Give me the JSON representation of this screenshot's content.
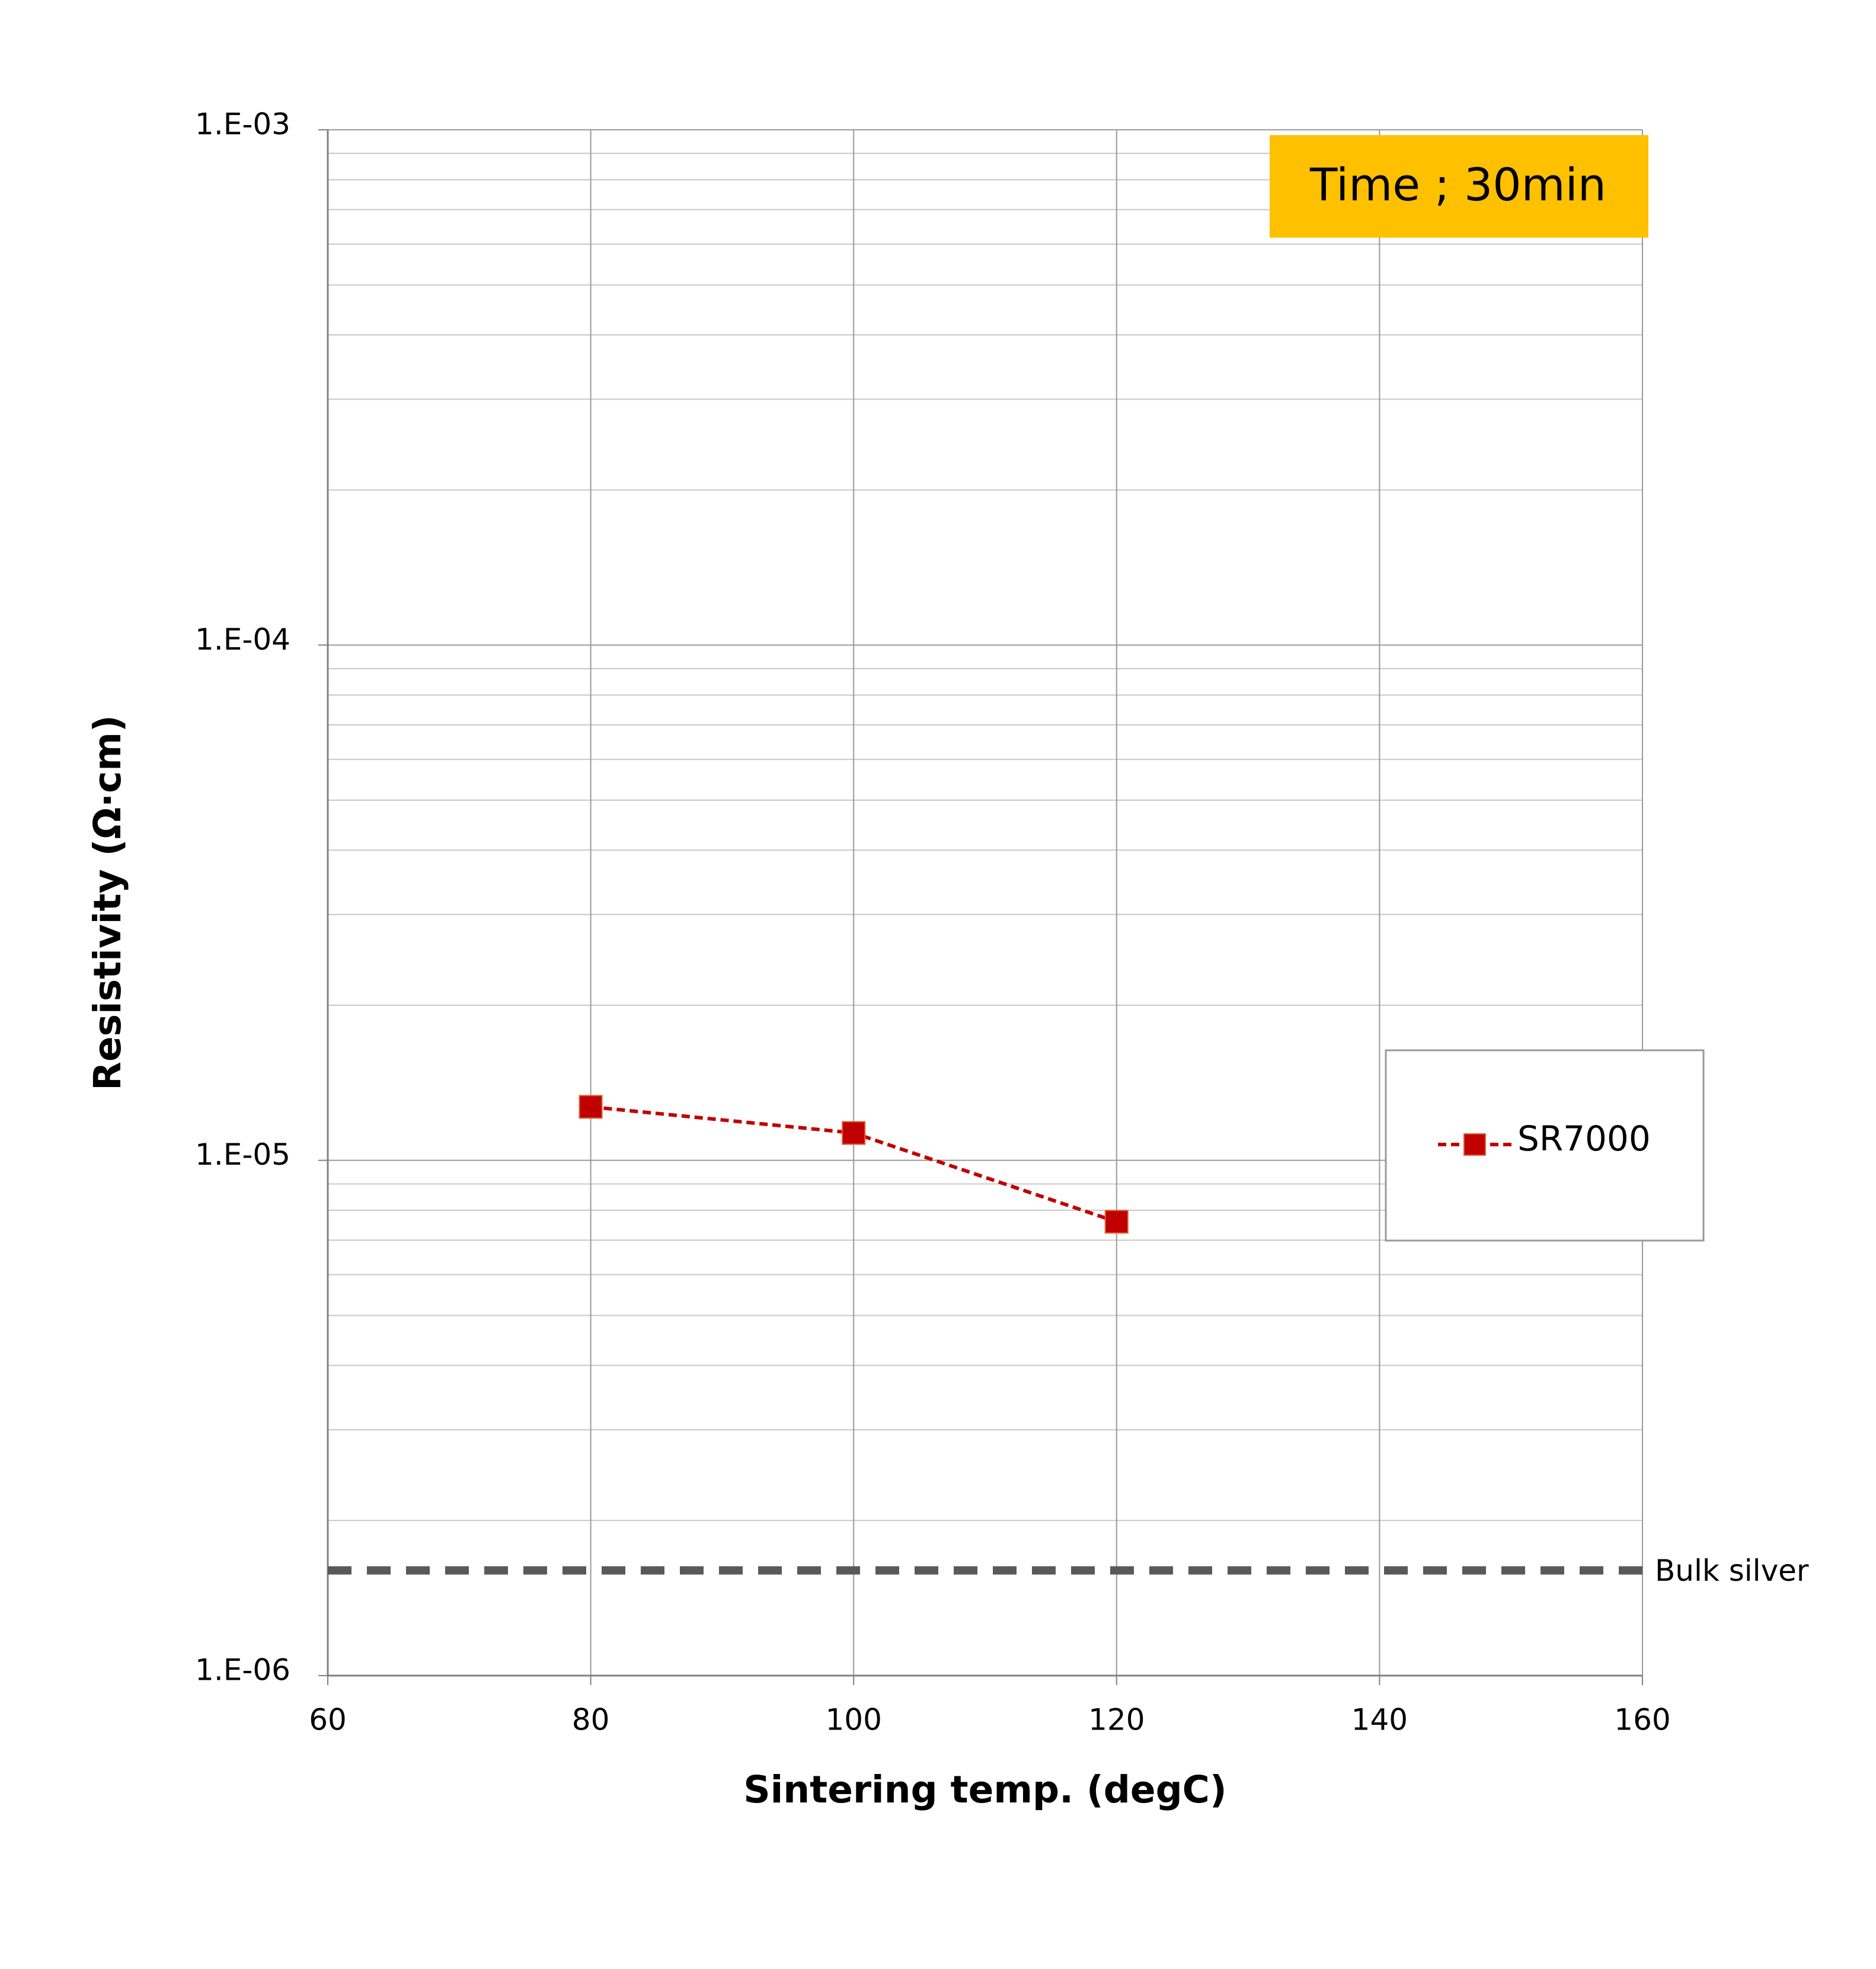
{
  "chart_data": {
    "type": "line",
    "x_label": "Sintering temp. (degC)",
    "y_label": "Resistivity (Ω·cm)",
    "x": [
      80,
      100,
      120
    ],
    "series": [
      {
        "name": "SR7000",
        "color": "#c00000",
        "values": [
          1.27e-05,
          1.13e-05,
          7.6e-06
        ]
      }
    ],
    "xlim": [
      60,
      160
    ],
    "xticks": [
      60,
      80,
      100,
      120,
      140,
      160
    ],
    "ylim": [
      1e-06,
      0.001
    ],
    "yticks": [
      {
        "value": 1e-06,
        "label": "1.E-06"
      },
      {
        "value": 1e-05,
        "label": "1.E-05"
      },
      {
        "value": 0.0001,
        "label": "1.E-04"
      },
      {
        "value": 0.001,
        "label": "1.E-03"
      }
    ],
    "y_log": true,
    "grid": true,
    "minor_grid": true,
    "legend": "right",
    "reference_line": {
      "value": 1.6e-06,
      "label": "Bulk  silver",
      "color": "#595959"
    },
    "annotation": {
      "text": "Time ; 30min",
      "color": "#ffc000"
    }
  }
}
